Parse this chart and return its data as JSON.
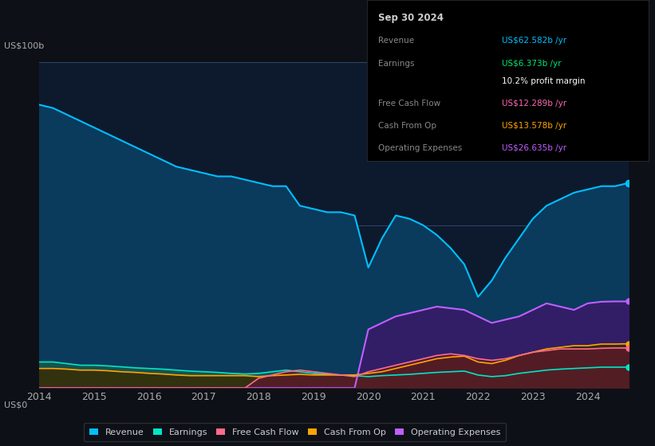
{
  "background_color": "#0d1117",
  "plot_bg_color": "#0d1a2e",
  "title_box": {
    "date": "Sep 30 2024",
    "rows": [
      {
        "label": "Revenue",
        "value": "US$62.582b /yr",
        "color": "#00bfff"
      },
      {
        "label": "Earnings",
        "value": "US$6.373b /yr",
        "color": "#00e676"
      },
      {
        "label": "",
        "value": "10.2% profit margin",
        "color": "#ffffff"
      },
      {
        "label": "Free Cash Flow",
        "value": "US$12.289b /yr",
        "color": "#ff69b4"
      },
      {
        "label": "Cash From Op",
        "value": "US$13.578b /yr",
        "color": "#ffa500"
      },
      {
        "label": "Operating Expenses",
        "value": "US$26.635b /yr",
        "color": "#bf5fff"
      }
    ]
  },
  "years": [
    2014,
    2014.25,
    2014.5,
    2014.75,
    2015,
    2015.25,
    2015.5,
    2015.75,
    2016,
    2016.25,
    2016.5,
    2016.75,
    2017,
    2017.25,
    2017.5,
    2017.75,
    2018,
    2018.25,
    2018.5,
    2018.75,
    2019,
    2019.25,
    2019.5,
    2019.75,
    2020,
    2020.25,
    2020.5,
    2020.75,
    2021,
    2021.25,
    2021.5,
    2021.75,
    2022,
    2022.25,
    2022.5,
    2022.75,
    2023,
    2023.25,
    2023.5,
    2023.75,
    2024,
    2024.25,
    2024.5,
    2024.75
  ],
  "revenue": [
    87,
    86,
    84,
    82,
    80,
    78,
    76,
    74,
    72,
    70,
    68,
    67,
    66,
    65,
    65,
    64,
    63,
    62,
    62,
    56,
    55,
    54,
    54,
    53,
    37,
    46,
    53,
    52,
    50,
    47,
    43,
    38,
    28,
    33,
    40,
    46,
    52,
    56,
    58,
    60,
    61,
    62,
    62,
    63
  ],
  "earnings": [
    8,
    8,
    7.5,
    7,
    7,
    6.8,
    6.5,
    6.2,
    6,
    5.8,
    5.5,
    5.2,
    5,
    4.8,
    4.5,
    4.3,
    4.5,
    5,
    5.5,
    5,
    4.5,
    4.2,
    4,
    3.8,
    3.5,
    3.8,
    4,
    4.2,
    4.5,
    4.8,
    5,
    5.2,
    4,
    3.5,
    3.8,
    4.5,
    5,
    5.5,
    5.8,
    6,
    6.2,
    6.4,
    6.4,
    6.4
  ],
  "free_cash_flow": [
    0,
    0,
    0,
    0,
    0,
    0,
    0,
    0,
    0,
    0,
    0,
    0,
    0,
    0,
    0,
    0,
    3,
    4,
    5,
    5.5,
    5,
    4.5,
    4,
    3.5,
    5,
    6,
    7,
    8,
    9,
    10,
    10.5,
    10,
    9,
    8.5,
    9,
    10,
    11,
    11.5,
    12,
    12,
    12,
    12.2,
    12.3,
    12.3
  ],
  "cash_from_op": [
    6,
    6,
    5.8,
    5.5,
    5.5,
    5.3,
    5,
    4.8,
    4.5,
    4.3,
    4,
    3.8,
    3.8,
    3.8,
    3.8,
    3.8,
    3.5,
    3.8,
    4,
    4.2,
    4,
    4,
    4,
    4,
    4.5,
    5,
    6,
    7,
    8,
    9,
    9.5,
    9.8,
    8,
    7.5,
    8.5,
    10,
    11,
    12,
    12.5,
    13,
    13,
    13.5,
    13.5,
    13.6
  ],
  "operating_expenses": [
    0,
    0,
    0,
    0,
    0,
    0,
    0,
    0,
    0,
    0,
    0,
    0,
    0,
    0,
    0,
    0,
    0,
    0,
    0,
    0,
    0,
    0,
    0,
    0,
    18,
    20,
    22,
    23,
    24,
    25,
    24.5,
    24,
    22,
    20,
    21,
    22,
    24,
    26,
    25,
    24,
    26,
    26.5,
    26.6,
    26.6
  ],
  "ylim": [
    0,
    100
  ],
  "yticks": [
    0,
    50,
    100
  ],
  "ytick_labels": [
    "US$0",
    "",
    "US$100b"
  ],
  "xticks": [
    2014,
    2015,
    2016,
    2017,
    2018,
    2019,
    2020,
    2021,
    2022,
    2023,
    2024
  ],
  "revenue_color": "#00bfff",
  "revenue_fill_color": "#0a3a5c",
  "earnings_color": "#00e5c8",
  "earnings_fill_color": "#1a5a4a",
  "free_cash_flow_color": "#ff6b8a",
  "free_cash_flow_fill_color": "#5a1a2a",
  "cash_from_op_color": "#ffa500",
  "cash_from_op_fill_color": "#3a2a00",
  "operating_expenses_color": "#bf5fff",
  "operating_expenses_fill_color": "#3a1a6a",
  "legend_labels": [
    "Revenue",
    "Earnings",
    "Free Cash Flow",
    "Cash From Op",
    "Operating Expenses"
  ],
  "legend_colors": [
    "#00bfff",
    "#00e5c8",
    "#ff6b8a",
    "#ffa500",
    "#bf5fff"
  ]
}
